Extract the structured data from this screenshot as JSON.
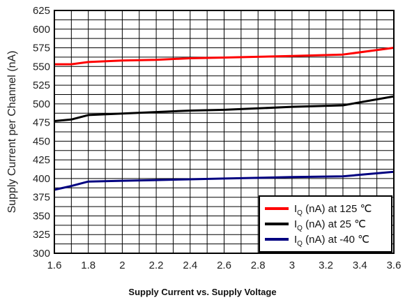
{
  "chart_data": {
    "type": "line",
    "title": "",
    "caption": "Supply Current vs. Supply Voltage",
    "xlabel": "",
    "ylabel": "Supply Current per Channel (nA)",
    "xlim": [
      1.6,
      3.6
    ],
    "ylim": [
      300,
      625
    ],
    "x_ticks": [
      "1.6",
      "1.8",
      "2",
      "2.2",
      "2.4",
      "2.6",
      "2.8",
      "3",
      "3.2",
      "3.4",
      "3.6"
    ],
    "y_ticks": [
      "300",
      "325",
      "350",
      "375",
      "400",
      "425",
      "450",
      "475",
      "500",
      "525",
      "550",
      "575",
      "600",
      "625"
    ],
    "grid": true,
    "legend_position": "bottom-right",
    "series": [
      {
        "name": "IQ (nA) at 125 ℃",
        "legend_main": "I",
        "legend_sub": "Q",
        "legend_rest": " (nA) at 125 ℃",
        "color": "#ff0000",
        "x": [
          1.6,
          1.7,
          1.8,
          2.0,
          2.2,
          2.4,
          2.6,
          2.8,
          3.0,
          3.3,
          3.6
        ],
        "y": [
          553,
          553,
          556,
          558,
          559,
          561,
          562,
          563,
          564,
          566,
          575
        ]
      },
      {
        "name": "IQ (nA) at 25 ℃",
        "legend_main": "I",
        "legend_sub": "Q",
        "legend_rest": " (nA) at 25 ℃",
        "color": "#000000",
        "x": [
          1.6,
          1.7,
          1.8,
          2.0,
          2.2,
          2.4,
          2.6,
          2.8,
          3.0,
          3.3,
          3.6
        ],
        "y": [
          477,
          479,
          485,
          487,
          489,
          491,
          492,
          494,
          496,
          498,
          510
        ]
      },
      {
        "name": "IQ (nA) at -40 ℃",
        "legend_main": "I",
        "legend_sub": "Q",
        "legend_rest": " (nA) at -40 ℃",
        "color": "#000080",
        "x": [
          1.6,
          1.7,
          1.8,
          2.0,
          2.2,
          2.4,
          2.6,
          2.8,
          3.0,
          3.3,
          3.6
        ],
        "y": [
          385,
          390,
          396,
          397,
          398,
          399,
          400,
          401,
          402,
          403,
          409
        ]
      }
    ]
  }
}
